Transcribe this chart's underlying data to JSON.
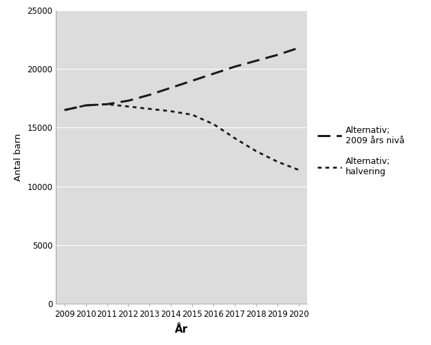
{
  "years": [
    2009,
    2010,
    2011,
    2012,
    2013,
    2014,
    2015,
    2016,
    2017,
    2018,
    2019,
    2020
  ],
  "alt_2009": [
    16500,
    16900,
    17000,
    17300,
    17800,
    18400,
    19000,
    19600,
    20200,
    20700,
    21200,
    21800
  ],
  "alt_halv": [
    16500,
    16900,
    17000,
    16800,
    16600,
    16400,
    16100,
    15300,
    14100,
    13000,
    12100,
    11400
  ],
  "line1_label": "Alternativ;\n2009 års nivå",
  "line2_label": "Alternativ;\nhalvering",
  "xlabel": "År",
  "ylabel": "Antal barn",
  "ylim": [
    0,
    25000
  ],
  "yticks": [
    0,
    5000,
    10000,
    15000,
    20000,
    25000
  ],
  "plot_bg_color": "#dcdcdc",
  "fig_bg_color": "#ffffff",
  "line_color": "#1a1a1a",
  "grid_color": "#ffffff",
  "figsize": [
    6.26,
    5.01
  ],
  "dpi": 100
}
